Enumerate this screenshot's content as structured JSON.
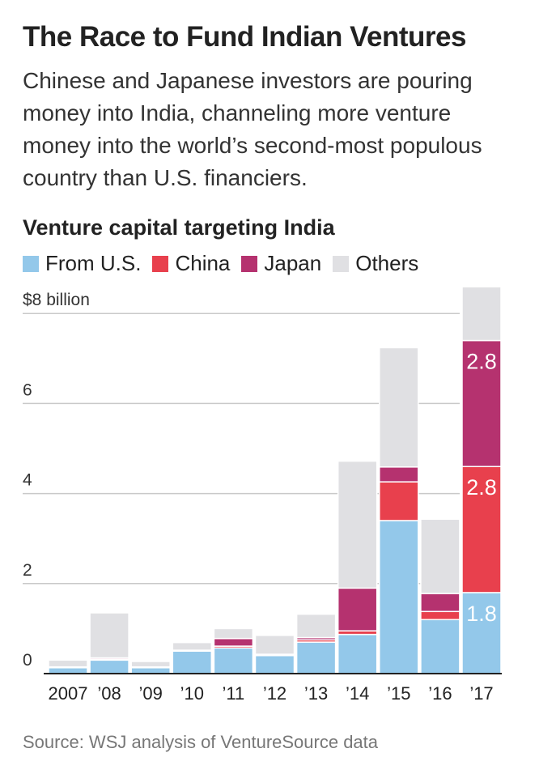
{
  "header": {
    "title": "The Race to Fund Indian Ventures",
    "subtitle": "Chinese and Japanese investors are pouring money into India, channeling more venture money into the world’s second-most populous country than U.S. financiers."
  },
  "footer": {
    "source": "Source: WSJ analysis of VentureSource data"
  },
  "chart_data": {
    "type": "bar",
    "stacked": true,
    "title": "Venture capital targeting India",
    "ylabel": "",
    "xlabel": "",
    "ylim": [
      0,
      8.4
    ],
    "yticks": [
      0,
      2,
      4,
      6,
      8
    ],
    "ytick_labels": [
      "0",
      "2",
      "4",
      "6",
      "$8 billion"
    ],
    "categories": [
      "2007",
      "’08",
      "’09",
      "’10",
      "’11",
      "’12",
      "’13",
      "’14",
      "’15",
      "’16",
      "’17"
    ],
    "series": [
      {
        "name": "From U.S.",
        "color": "#93c8ea",
        "values": [
          0.13,
          0.3,
          0.13,
          0.5,
          0.57,
          0.4,
          0.7,
          0.87,
          3.4,
          1.2,
          1.8
        ]
      },
      {
        "name": "China",
        "color": "#e8404d",
        "values": [
          0.0,
          0.02,
          0.0,
          0.0,
          0.04,
          0.01,
          0.05,
          0.08,
          0.86,
          0.18,
          2.8
        ]
      },
      {
        "name": "Japan",
        "color": "#b5326f",
        "values": [
          0.02,
          0.03,
          0.02,
          0.02,
          0.17,
          0.02,
          0.05,
          0.95,
          0.33,
          0.4,
          2.8
        ]
      },
      {
        "name": "Others",
        "color": "#e0e0e3",
        "values": [
          0.15,
          1.0,
          0.12,
          0.17,
          0.22,
          0.42,
          0.52,
          2.82,
          2.65,
          1.65,
          1.35
        ]
      }
    ],
    "data_labels": [
      {
        "category": "’17",
        "series": "From U.S.",
        "text": "1.8"
      },
      {
        "category": "’17",
        "series": "China",
        "text": "2.8"
      },
      {
        "category": "’17",
        "series": "Japan",
        "text": "2.8"
      }
    ],
    "legend_position": "top-left",
    "grid": true
  }
}
